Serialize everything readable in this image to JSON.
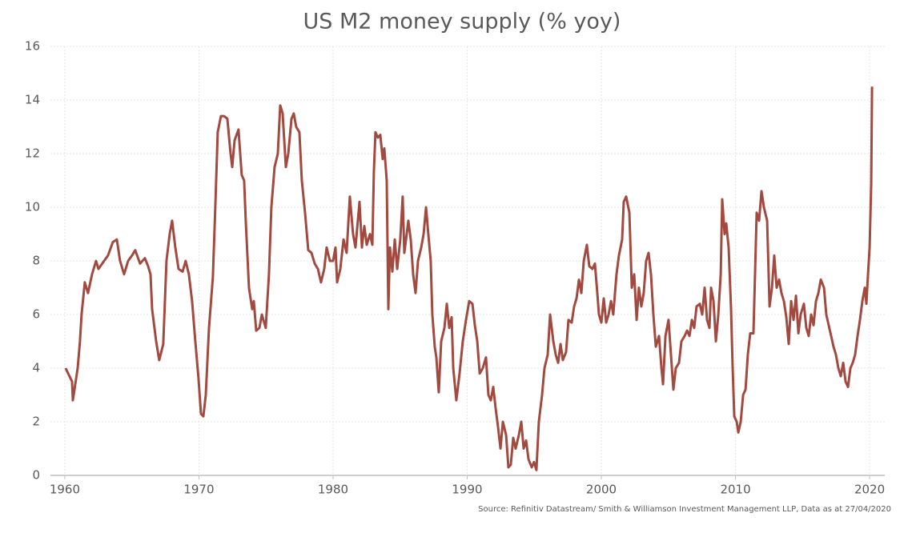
{
  "chart_data": {
    "type": "line",
    "title": "US M2 money supply (% yoy)",
    "source": "Source: Refinitiv Datastream/ Smith & Williamson Investment Management LLP, Data as at 27/04/2020",
    "color": "#a24a40",
    "xlim": [
      1958.93,
      2021.13
    ],
    "xticks": [
      1960,
      1970,
      1980,
      1990,
      2000,
      2010,
      2020
    ],
    "ylim": [
      0,
      16
    ],
    "yticks": [
      0,
      2,
      4,
      6,
      8,
      10,
      12,
      14,
      16
    ],
    "grid": true,
    "x": [
      1960.06,
      1960.54,
      1960.6,
      1960.96,
      1961.13,
      1961.25,
      1961.49,
      1961.73,
      1962.03,
      1962.33,
      1962.51,
      1962.93,
      1963.22,
      1963.58,
      1963.88,
      1964.12,
      1964.42,
      1964.72,
      1965.01,
      1965.25,
      1965.61,
      1965.97,
      1966.21,
      1966.39,
      1966.51,
      1966.81,
      1967.04,
      1967.34,
      1967.58,
      1967.82,
      1968.0,
      1968.24,
      1968.48,
      1968.78,
      1969.01,
      1969.25,
      1969.49,
      1969.73,
      1969.97,
      1970.15,
      1970.33,
      1970.51,
      1970.75,
      1971.04,
      1971.22,
      1971.4,
      1971.64,
      1971.88,
      1972.12,
      1972.36,
      1972.48,
      1972.66,
      1972.95,
      1973.19,
      1973.37,
      1973.49,
      1973.73,
      1973.97,
      1974.09,
      1974.27,
      1974.51,
      1974.69,
      1974.98,
      1975.22,
      1975.4,
      1975.64,
      1975.88,
      1976.06,
      1976.24,
      1976.48,
      1976.66,
      1976.9,
      1977.07,
      1977.25,
      1977.49,
      1977.67,
      1977.91,
      1978.15,
      1978.39,
      1978.63,
      1978.87,
      1979.1,
      1979.34,
      1979.52,
      1979.76,
      1980.0,
      1980.18,
      1980.3,
      1980.54,
      1980.78,
      1981.01,
      1981.25,
      1981.49,
      1981.67,
      1981.97,
      1982.15,
      1982.33,
      1982.51,
      1982.75,
      1982.93,
      1983.04,
      1983.16,
      1983.34,
      1983.52,
      1983.7,
      1983.82,
      1984.0,
      1984.12,
      1984.24,
      1984.42,
      1984.6,
      1984.78,
      1985.01,
      1985.19,
      1985.31,
      1985.49,
      1985.61,
      1985.79,
      1985.97,
      1986.15,
      1986.33,
      1986.57,
      1986.75,
      1986.93,
      1987.1,
      1987.28,
      1987.4,
      1987.58,
      1987.7,
      1987.88,
      1988.06,
      1988.3,
      1988.48,
      1988.66,
      1988.84,
      1988.96,
      1989.19,
      1989.43,
      1989.67,
      1989.91,
      1990.15,
      1990.39,
      1990.57,
      1990.75,
      1990.93,
      1991.16,
      1991.4,
      1991.58,
      1991.76,
      1991.94,
      1992.12,
      1992.3,
      1992.48,
      1992.66,
      1992.9,
      1993.07,
      1993.25,
      1993.43,
      1993.61,
      1993.85,
      1994.03,
      1994.21,
      1994.39,
      1994.57,
      1994.81,
      1994.98,
      1995.16,
      1995.34,
      1995.58,
      1995.76,
      1996.0,
      1996.18,
      1996.42,
      1996.6,
      1996.78,
      1996.96,
      1997.13,
      1997.37,
      1997.55,
      1997.79,
      1997.97,
      1998.15,
      1998.33,
      1998.51,
      1998.69,
      1998.92,
      1999.1,
      1999.34,
      1999.52,
      1999.7,
      1999.82,
      2000.0,
      2000.18,
      2000.36,
      2000.54,
      2000.72,
      2000.89,
      2001.13,
      2001.31,
      2001.55,
      2001.67,
      2001.85,
      2002.09,
      2002.27,
      2002.45,
      2002.63,
      2002.8,
      2002.98,
      2003.16,
      2003.34,
      2003.52,
      2003.7,
      2003.88,
      2004.06,
      2004.3,
      2004.48,
      2004.6,
      2004.78,
      2005.01,
      2005.19,
      2005.37,
      2005.55,
      2005.79,
      2005.97,
      2006.21,
      2006.39,
      2006.57,
      2006.75,
      2006.92,
      2007.1,
      2007.34,
      2007.52,
      2007.7,
      2007.88,
      2008.06,
      2008.18,
      2008.36,
      2008.54,
      2008.72,
      2008.9,
      2009.01,
      2009.19,
      2009.31,
      2009.49,
      2009.67,
      2009.79,
      2009.91,
      2010.09,
      2010.21,
      2010.39,
      2010.57,
      2010.75,
      2010.92,
      2011.1,
      2011.34,
      2011.58,
      2011.76,
      2011.94,
      2012.12,
      2012.36,
      2012.54,
      2012.72,
      2012.89,
      2013.07,
      2013.25,
      2013.43,
      2013.61,
      2013.79,
      2013.97,
      2014.15,
      2014.33,
      2014.51,
      2014.69,
      2014.86,
      2015.1,
      2015.28,
      2015.46,
      2015.64,
      2015.82,
      2016.0,
      2016.18,
      2016.36,
      2016.6,
      2016.77,
      2016.95,
      2017.13,
      2017.31,
      2017.49,
      2017.67,
      2017.85,
      2018.03,
      2018.21,
      2018.39,
      2018.57,
      2018.74,
      2018.92,
      2019.1,
      2019.28,
      2019.46,
      2019.64,
      2019.76,
      2019.88,
      2020.0,
      2020.12,
      2020.18
    ],
    "values": [
      4.0,
      3.5,
      2.8,
      4.0,
      5.0,
      6.0,
      7.2,
      6.8,
      7.5,
      8.0,
      7.7,
      8.0,
      8.2,
      8.7,
      8.8,
      8.0,
      7.5,
      8.0,
      8.2,
      8.4,
      7.9,
      8.1,
      7.8,
      7.5,
      6.2,
      5.0,
      4.3,
      4.9,
      8.0,
      9.0,
      9.5,
      8.5,
      7.7,
      7.6,
      8.0,
      7.5,
      6.5,
      5.0,
      3.6,
      2.3,
      2.2,
      3.0,
      5.5,
      7.4,
      10.0,
      12.8,
      13.4,
      13.4,
      13.3,
      12.0,
      11.5,
      12.5,
      12.9,
      11.2,
      11.0,
      9.5,
      7.0,
      6.2,
      6.5,
      5.4,
      5.5,
      6.0,
      5.5,
      7.5,
      10.0,
      11.5,
      12.0,
      13.8,
      13.5,
      11.5,
      12.0,
      13.3,
      13.5,
      13.0,
      12.8,
      11.0,
      9.8,
      8.4,
      8.3,
      7.9,
      7.7,
      7.2,
      7.7,
      8.5,
      8.0,
      8.0,
      8.5,
      7.2,
      7.7,
      8.8,
      8.3,
      10.4,
      9.0,
      8.5,
      10.2,
      8.5,
      9.3,
      8.6,
      9.0,
      8.6,
      11.3,
      12.8,
      12.6,
      12.7,
      11.8,
      12.2,
      11.0,
      6.2,
      8.5,
      7.6,
      8.8,
      7.7,
      8.8,
      10.4,
      8.3,
      9.0,
      9.5,
      8.8,
      7.5,
      6.8,
      8.0,
      8.5,
      9.0,
      10.0,
      9.0,
      8.0,
      6.0,
      4.8,
      4.4,
      3.1,
      5.0,
      5.5,
      6.4,
      5.5,
      5.9,
      4.0,
      2.8,
      3.8,
      5.0,
      5.8,
      6.5,
      6.4,
      5.6,
      5.0,
      3.8,
      4.0,
      4.4,
      3.0,
      2.8,
      3.3,
      2.5,
      1.8,
      1.0,
      2.0,
      1.5,
      0.3,
      0.4,
      1.4,
      1.0,
      1.5,
      2.0,
      1.0,
      1.3,
      0.6,
      0.3,
      0.5,
      0.2,
      2.0,
      3.0,
      4.0,
      4.5,
      6.0,
      5.0,
      4.5,
      4.2,
      4.9,
      4.3,
      4.6,
      5.8,
      5.7,
      6.3,
      6.6,
      7.3,
      6.8,
      8.0,
      8.6,
      7.8,
      7.7,
      7.9,
      6.8,
      6.0,
      5.7,
      6.6,
      5.7,
      6.0,
      6.5,
      6.0,
      7.5,
      8.2,
      8.8,
      10.2,
      10.4,
      9.8,
      7.0,
      7.5,
      5.8,
      7.0,
      6.3,
      6.8,
      8.0,
      8.3,
      7.5,
      6.0,
      4.8,
      5.2,
      4.0,
      3.4,
      5.2,
      5.8,
      4.5,
      3.2,
      4.0,
      4.2,
      5.0,
      5.2,
      5.4,
      5.2,
      5.8,
      5.5,
      6.3,
      6.4,
      6.0,
      7.0,
      5.8,
      5.5,
      7.0,
      6.5,
      5.0,
      6.0,
      7.5,
      10.3,
      9.0,
      9.4,
      8.5,
      6.2,
      4.0,
      2.2,
      2.0,
      1.6,
      2.0,
      3.0,
      3.2,
      4.5,
      5.3,
      5.3,
      9.8,
      9.5,
      10.6,
      10.0,
      9.5,
      6.3,
      7.0,
      8.2,
      7.0,
      7.3,
      6.8,
      6.5,
      5.9,
      4.9,
      6.5,
      5.8,
      6.7,
      5.3,
      6.0,
      6.4,
      5.5,
      5.2,
      6.0,
      5.6,
      6.5,
      6.8,
      7.3,
      7.0,
      6.0,
      5.6,
      5.2,
      4.8,
      4.5,
      4.0,
      3.7,
      4.2,
      3.5,
      3.3,
      4.0,
      4.2,
      4.5,
      5.2,
      5.8,
      6.5,
      7.0,
      6.4,
      7.5,
      8.5,
      10.9,
      14.5
    ]
  }
}
